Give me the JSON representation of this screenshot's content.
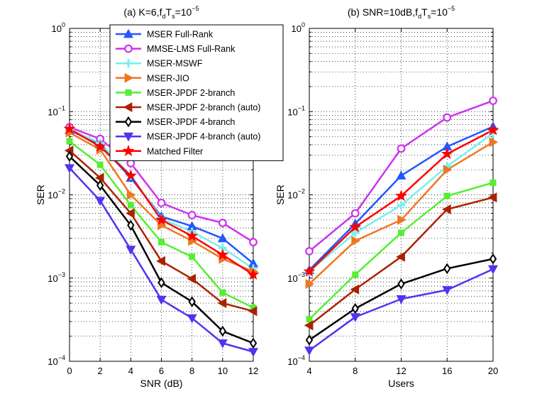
{
  "chart_data": [
    {
      "type": "line",
      "yscale": "log",
      "title_parts": [
        "(a) K=6,f",
        "d",
        "T",
        "s",
        "=10",
        "−5"
      ],
      "xlabel": "SNR (dB)",
      "ylabel": "SER",
      "xlim": [
        0,
        12
      ],
      "ylim": [
        0.0001,
        1
      ],
      "x": [
        0,
        2,
        4,
        6,
        8,
        10,
        12
      ],
      "xticks": [
        "0",
        "2",
        "4",
        "6",
        "8",
        "10",
        "12"
      ],
      "yticks": [
        {
          "base": "10",
          "exp": "−4"
        },
        {
          "base": "10",
          "exp": "−3"
        },
        {
          "base": "10",
          "exp": "−2"
        },
        {
          "base": "10",
          "exp": "−1"
        },
        {
          "base": "10",
          "exp": "0"
        }
      ],
      "grid": true,
      "legend_position": "top-right",
      "series": [
        {
          "name": "MSER Full-Rank",
          "color": "#2457ff",
          "marker": "triangle-up",
          "values": [
            0.06,
            0.04,
            0.016,
            0.0055,
            0.0042,
            0.003,
            0.0015
          ]
        },
        {
          "name": "MMSE-LMS Full-Rank",
          "color": "#cc33ee",
          "marker": "circle",
          "values": [
            0.065,
            0.047,
            0.024,
            0.008,
            0.0057,
            0.0046,
            0.0027
          ]
        },
        {
          "name": "MSER-MSWF",
          "color": "#77f0ee",
          "marker": "plus",
          "values": [
            0.061,
            0.042,
            0.017,
            0.0052,
            0.0036,
            0.0023,
            0.0013
          ]
        },
        {
          "name": "MSER-JIO",
          "color": "#ee7722",
          "marker": "triangle-right",
          "values": [
            0.056,
            0.035,
            0.01,
            0.0043,
            0.0028,
            0.0017,
            0.0012
          ]
        },
        {
          "name": "MSER-JPDF 2-branch",
          "color": "#55ee33",
          "marker": "square",
          "values": [
            0.044,
            0.023,
            0.0075,
            0.0027,
            0.0018,
            0.00067,
            0.00044
          ]
        },
        {
          "name": "MSER-JPDF 2-branch (auto)",
          "color": "#aa2200",
          "marker": "triangle-left",
          "values": [
            0.034,
            0.016,
            0.006,
            0.0016,
            0.00098,
            0.0005,
            0.0004
          ]
        },
        {
          "name": "MSER-JPDF 4-branch",
          "color": "#000000",
          "marker": "diamond",
          "values": [
            0.029,
            0.013,
            0.0043,
            0.00088,
            0.00052,
            0.00023,
            0.000165
          ]
        },
        {
          "name": "MSER-JPDF 4-branch (auto)",
          "color": "#5533ee",
          "marker": "triangle-down",
          "values": [
            0.021,
            0.0085,
            0.0022,
            0.00055,
            0.00033,
            0.000165,
            0.00013
          ]
        },
        {
          "name": "Matched Filter",
          "color": "#ff0000",
          "marker": "star",
          "values": [
            0.062,
            0.038,
            0.017,
            0.005,
            0.0032,
            0.0019,
            0.0011
          ]
        }
      ]
    },
    {
      "type": "line",
      "yscale": "log",
      "title_parts": [
        "(b) SNR=10dB,f",
        "d",
        "T",
        "s",
        "=10",
        "−5"
      ],
      "xlabel": "Users",
      "ylabel": "SER",
      "xlim": [
        4,
        20
      ],
      "ylim": [
        0.0001,
        1
      ],
      "x": [
        4,
        8,
        12,
        16,
        20
      ],
      "xticks": [
        "4",
        "8",
        "12",
        "16",
        "20"
      ],
      "yticks": [
        {
          "base": "10",
          "exp": "−4"
        },
        {
          "base": "10",
          "exp": "−3"
        },
        {
          "base": "10",
          "exp": "−2"
        },
        {
          "base": "10",
          "exp": "−1"
        },
        {
          "base": "10",
          "exp": "0"
        }
      ],
      "grid": true,
      "series": [
        {
          "name": "MSER Full-Rank",
          "color": "#2457ff",
          "marker": "triangle-up",
          "values": [
            0.00125,
            0.0045,
            0.017,
            0.038,
            0.066
          ]
        },
        {
          "name": "MMSE-LMS Full-Rank",
          "color": "#cc33ee",
          "marker": "circle",
          "values": [
            0.0021,
            0.006,
            0.036,
            0.085,
            0.135
          ]
        },
        {
          "name": "MSER-MSWF",
          "color": "#77f0ee",
          "marker": "plus",
          "values": [
            0.0012,
            0.0035,
            0.0075,
            0.022,
            0.055
          ]
        },
        {
          "name": "MSER-JIO",
          "color": "#ee7722",
          "marker": "triangle-right",
          "values": [
            0.00085,
            0.0028,
            0.005,
            0.02,
            0.043
          ]
        },
        {
          "name": "MSER-JPDF 2-branch",
          "color": "#55ee33",
          "marker": "square",
          "values": [
            0.00032,
            0.0011,
            0.0035,
            0.0097,
            0.014
          ]
        },
        {
          "name": "MSER-JPDF 2-branch (auto)",
          "color": "#aa2200",
          "marker": "triangle-left",
          "values": [
            0.00027,
            0.00073,
            0.0018,
            0.0067,
            0.0093
          ]
        },
        {
          "name": "MSER-JPDF 4-branch",
          "color": "#000000",
          "marker": "diamond",
          "values": [
            0.00018,
            0.00043,
            0.00085,
            0.0013,
            0.0017
          ]
        },
        {
          "name": "MSER-JPDF 4-branch (auto)",
          "color": "#5533ee",
          "marker": "triangle-down",
          "values": [
            0.000135,
            0.00034,
            0.00056,
            0.00072,
            0.00128
          ]
        },
        {
          "name": "Matched Filter",
          "color": "#ff0000",
          "marker": "star",
          "values": [
            0.0012,
            0.0041,
            0.0097,
            0.031,
            0.06
          ]
        }
      ]
    }
  ]
}
